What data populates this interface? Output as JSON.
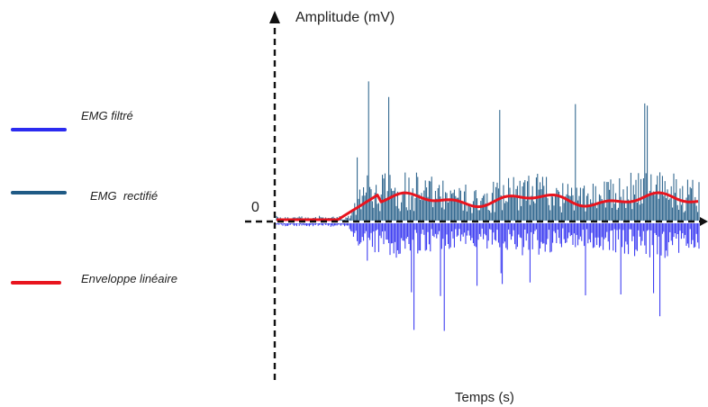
{
  "chart_data": {
    "type": "line",
    "title": "",
    "xlabel": "Temps (s)",
    "ylabel": "Amplitude (mV)",
    "origin_label": "0",
    "grid": false,
    "legend_placement": "left",
    "colors": {
      "filtered": "#2b2bf0",
      "rectified": "#1f5a85",
      "envelope": "#e8141e",
      "axis": "#111111"
    },
    "series": [
      {
        "name": "EMG filtré",
        "values": []
      },
      {
        "name": "EMG  rectifié",
        "values": []
      },
      {
        "name": "Enveloppe linéaire",
        "values": []
      }
    ]
  }
}
